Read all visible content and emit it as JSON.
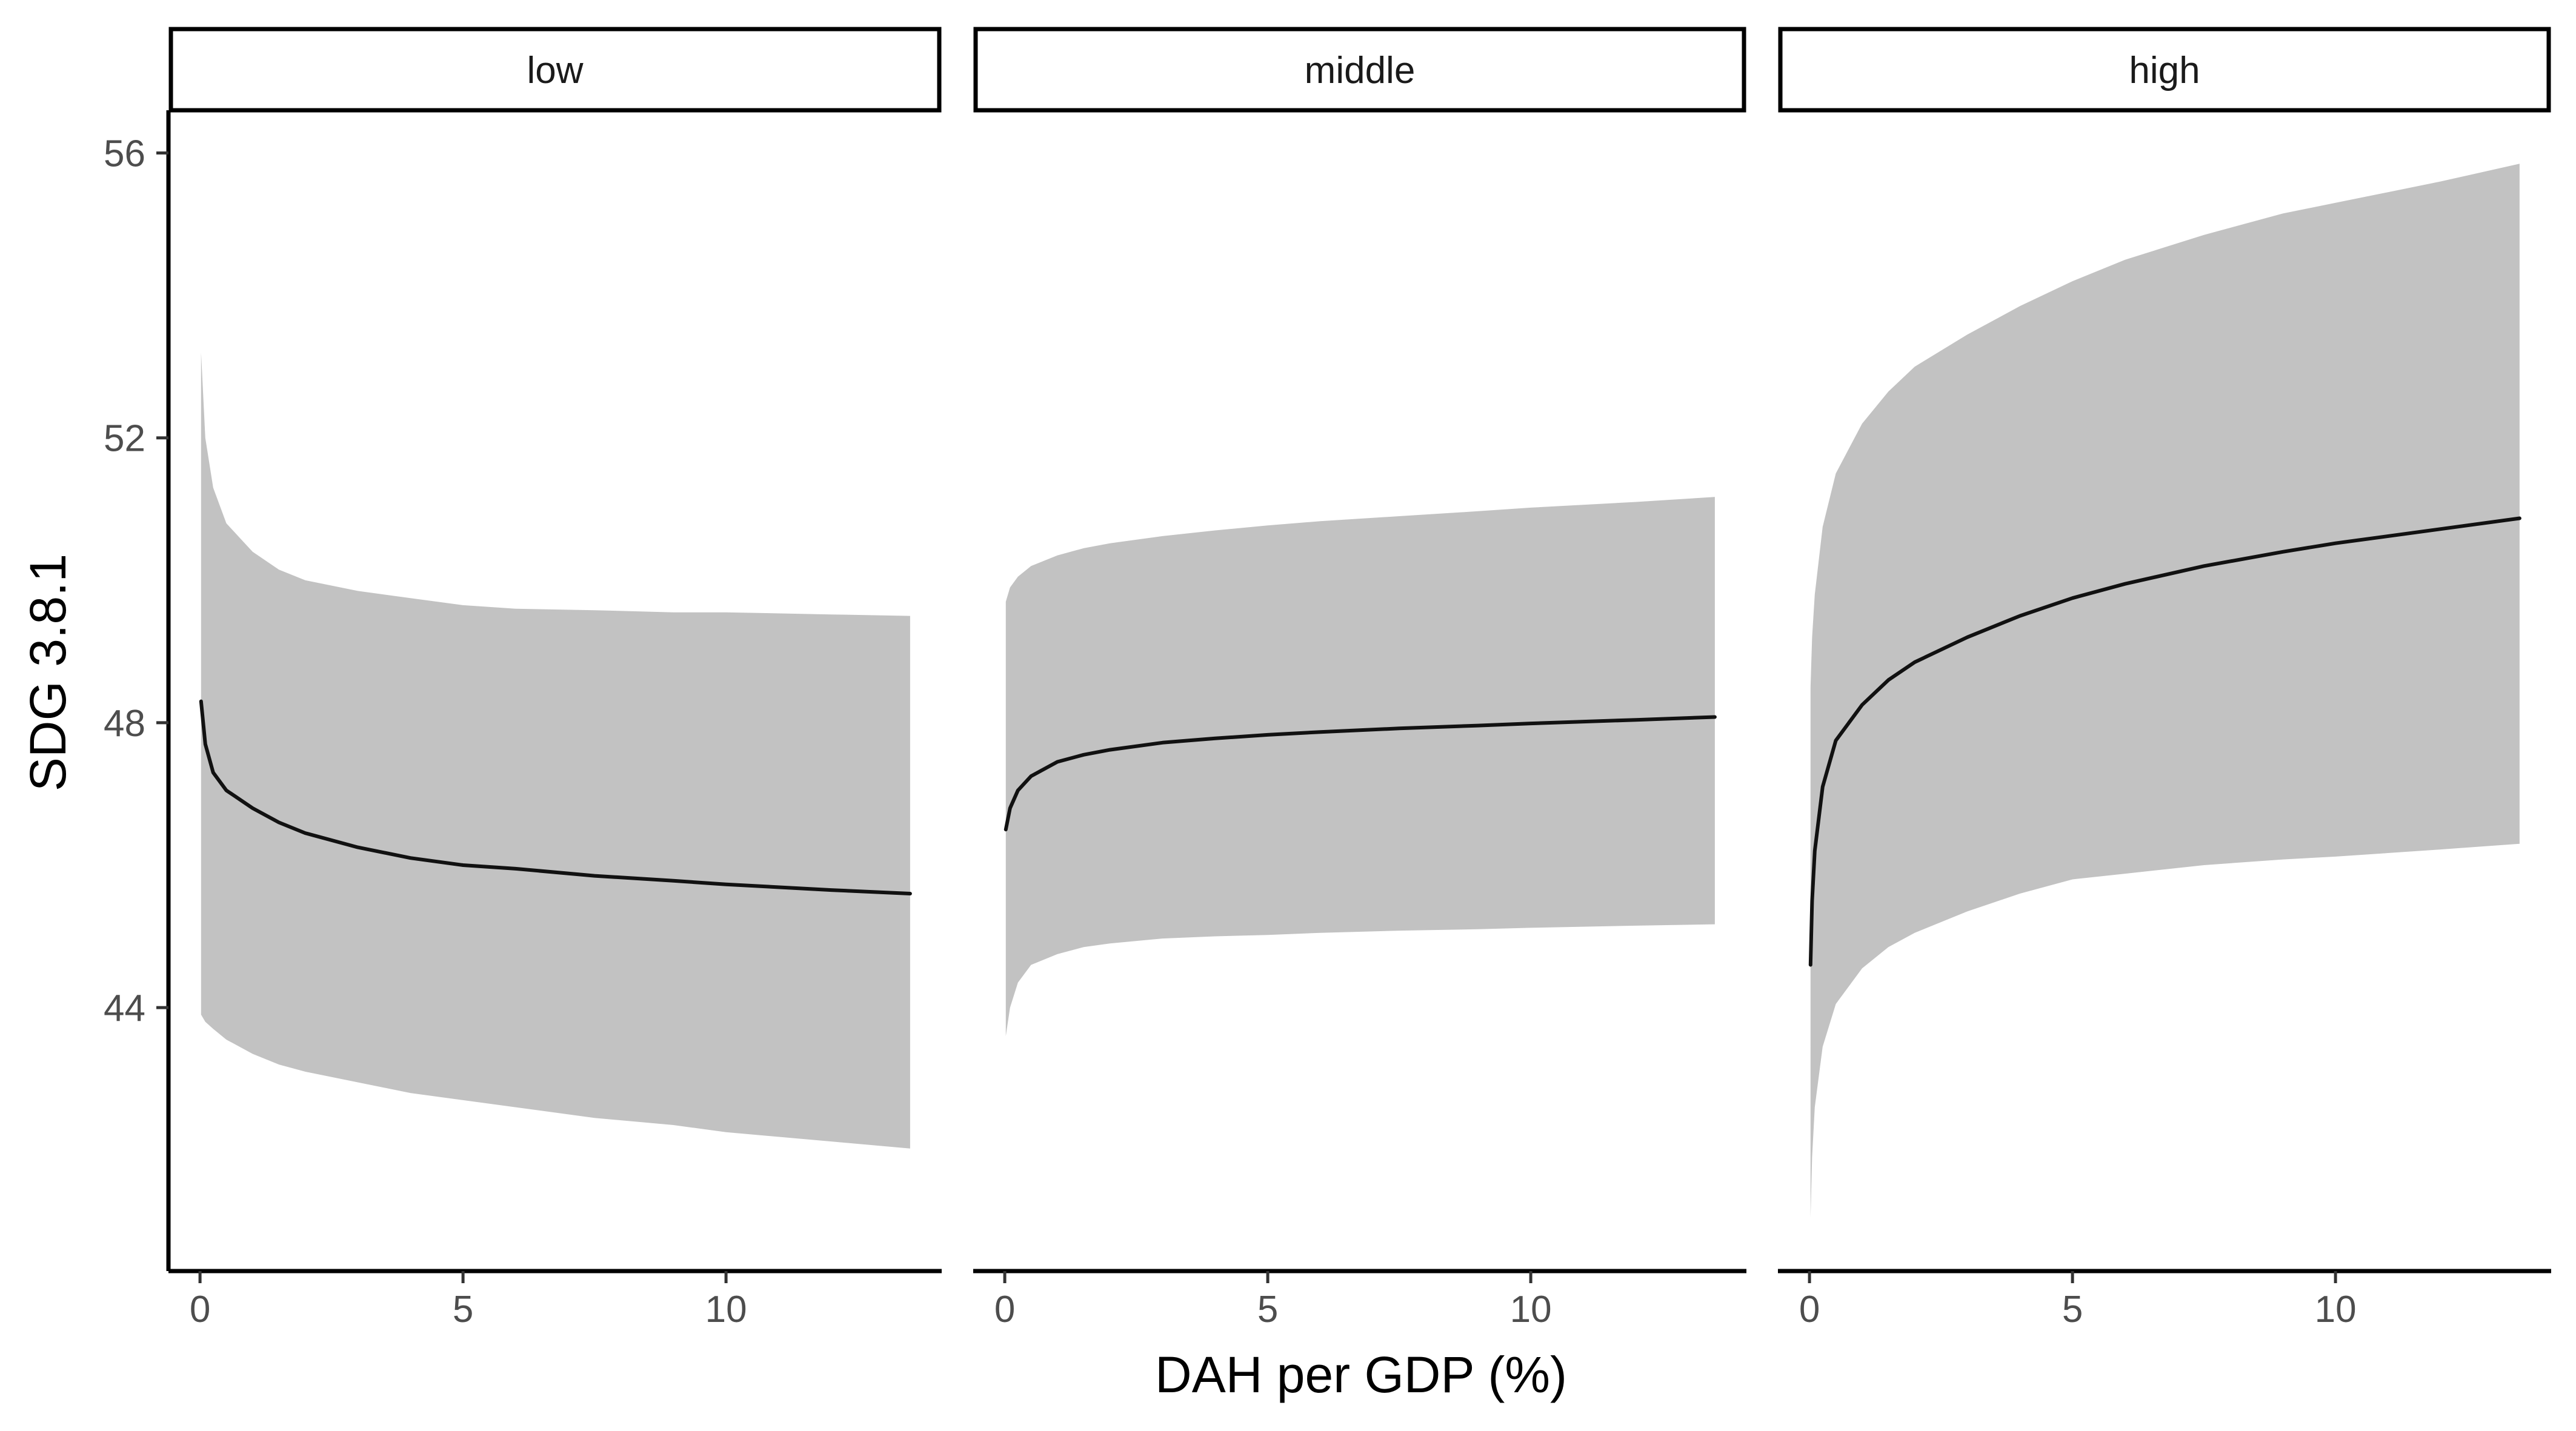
{
  "chart_data": {
    "type": "line",
    "facet_variable": "income group",
    "xlabel": "DAH per GDP (%)",
    "ylabel": "SDG 3.8.1",
    "xlim": [
      -0.6,
      14.1
    ],
    "ylim": [
      40.3,
      56.6
    ],
    "x_ticks": [
      0,
      5,
      10
    ],
    "y_ticks": [
      44,
      48,
      52,
      56
    ],
    "band_color": "#c2c2c2",
    "line_color": "#111111",
    "panels": [
      {
        "label": "low",
        "series": [
          {
            "x": 0.02,
            "fit": 48.3,
            "lower": 43.9,
            "upper": 53.2
          },
          {
            "x": 0.1,
            "fit": 47.7,
            "lower": 43.8,
            "upper": 52.0
          },
          {
            "x": 0.25,
            "fit": 47.3,
            "lower": 43.7,
            "upper": 51.3
          },
          {
            "x": 0.5,
            "fit": 47.05,
            "lower": 43.55,
            "upper": 50.8
          },
          {
            "x": 1.0,
            "fit": 46.8,
            "lower": 43.35,
            "upper": 50.4
          },
          {
            "x": 1.5,
            "fit": 46.6,
            "lower": 43.2,
            "upper": 50.15
          },
          {
            "x": 2.0,
            "fit": 46.45,
            "lower": 43.1,
            "upper": 50.0
          },
          {
            "x": 3.0,
            "fit": 46.25,
            "lower": 42.95,
            "upper": 49.85
          },
          {
            "x": 4.0,
            "fit": 46.1,
            "lower": 42.8,
            "upper": 49.75
          },
          {
            "x": 5.0,
            "fit": 46.0,
            "lower": 42.7,
            "upper": 49.65
          },
          {
            "x": 6.0,
            "fit": 45.95,
            "lower": 42.6,
            "upper": 49.6
          },
          {
            "x": 7.5,
            "fit": 45.85,
            "lower": 42.45,
            "upper": 49.58
          },
          {
            "x": 9.0,
            "fit": 45.78,
            "lower": 42.35,
            "upper": 49.55
          },
          {
            "x": 10.0,
            "fit": 45.73,
            "lower": 42.25,
            "upper": 49.55
          },
          {
            "x": 12.0,
            "fit": 45.65,
            "lower": 42.12,
            "upper": 49.52
          },
          {
            "x": 13.5,
            "fit": 45.6,
            "lower": 42.02,
            "upper": 49.5
          }
        ]
      },
      {
        "label": "middle",
        "series": [
          {
            "x": 0.02,
            "fit": 46.5,
            "lower": 43.6,
            "upper": 49.7
          },
          {
            "x": 0.1,
            "fit": 46.8,
            "lower": 44.0,
            "upper": 49.9
          },
          {
            "x": 0.25,
            "fit": 47.05,
            "lower": 44.35,
            "upper": 50.05
          },
          {
            "x": 0.5,
            "fit": 47.25,
            "lower": 44.6,
            "upper": 50.2
          },
          {
            "x": 1.0,
            "fit": 47.45,
            "lower": 44.75,
            "upper": 50.35
          },
          {
            "x": 1.5,
            "fit": 47.55,
            "lower": 44.85,
            "upper": 50.45
          },
          {
            "x": 2.0,
            "fit": 47.62,
            "lower": 44.9,
            "upper": 50.52
          },
          {
            "x": 3.0,
            "fit": 47.72,
            "lower": 44.97,
            "upper": 50.62
          },
          {
            "x": 4.0,
            "fit": 47.78,
            "lower": 45.0,
            "upper": 50.7
          },
          {
            "x": 5.0,
            "fit": 47.83,
            "lower": 45.02,
            "upper": 50.77
          },
          {
            "x": 6.0,
            "fit": 47.87,
            "lower": 45.05,
            "upper": 50.83
          },
          {
            "x": 7.5,
            "fit": 47.92,
            "lower": 45.08,
            "upper": 50.9
          },
          {
            "x": 9.0,
            "fit": 47.96,
            "lower": 45.1,
            "upper": 50.97
          },
          {
            "x": 10.0,
            "fit": 47.99,
            "lower": 45.12,
            "upper": 51.02
          },
          {
            "x": 12.0,
            "fit": 48.04,
            "lower": 45.15,
            "upper": 51.1
          },
          {
            "x": 13.5,
            "fit": 48.08,
            "lower": 45.17,
            "upper": 51.17
          }
        ]
      },
      {
        "label": "high",
        "series": [
          {
            "x": 0.02,
            "fit": 44.6,
            "lower": 41.05,
            "upper": 48.5
          },
          {
            "x": 0.05,
            "fit": 45.5,
            "lower": 41.9,
            "upper": 49.2
          },
          {
            "x": 0.1,
            "fit": 46.2,
            "lower": 42.6,
            "upper": 49.8
          },
          {
            "x": 0.25,
            "fit": 47.1,
            "lower": 43.45,
            "upper": 50.75
          },
          {
            "x": 0.5,
            "fit": 47.75,
            "lower": 44.05,
            "upper": 51.5
          },
          {
            "x": 1.0,
            "fit": 48.25,
            "lower": 44.55,
            "upper": 52.2
          },
          {
            "x": 1.5,
            "fit": 48.6,
            "lower": 44.85,
            "upper": 52.65
          },
          {
            "x": 2.0,
            "fit": 48.85,
            "lower": 45.05,
            "upper": 53.0
          },
          {
            "x": 3.0,
            "fit": 49.2,
            "lower": 45.35,
            "upper": 53.45
          },
          {
            "x": 4.0,
            "fit": 49.5,
            "lower": 45.6,
            "upper": 53.85
          },
          {
            "x": 5.0,
            "fit": 49.75,
            "lower": 45.8,
            "upper": 54.2
          },
          {
            "x": 6.0,
            "fit": 49.95,
            "lower": 45.88,
            "upper": 54.5
          },
          {
            "x": 7.5,
            "fit": 50.2,
            "lower": 46.0,
            "upper": 54.85
          },
          {
            "x": 9.0,
            "fit": 50.4,
            "lower": 46.08,
            "upper": 55.15
          },
          {
            "x": 10.0,
            "fit": 50.52,
            "lower": 46.12,
            "upper": 55.3
          },
          {
            "x": 12.0,
            "fit": 50.72,
            "lower": 46.22,
            "upper": 55.6
          },
          {
            "x": 13.5,
            "fit": 50.87,
            "lower": 46.3,
            "upper": 55.85
          }
        ]
      }
    ]
  }
}
